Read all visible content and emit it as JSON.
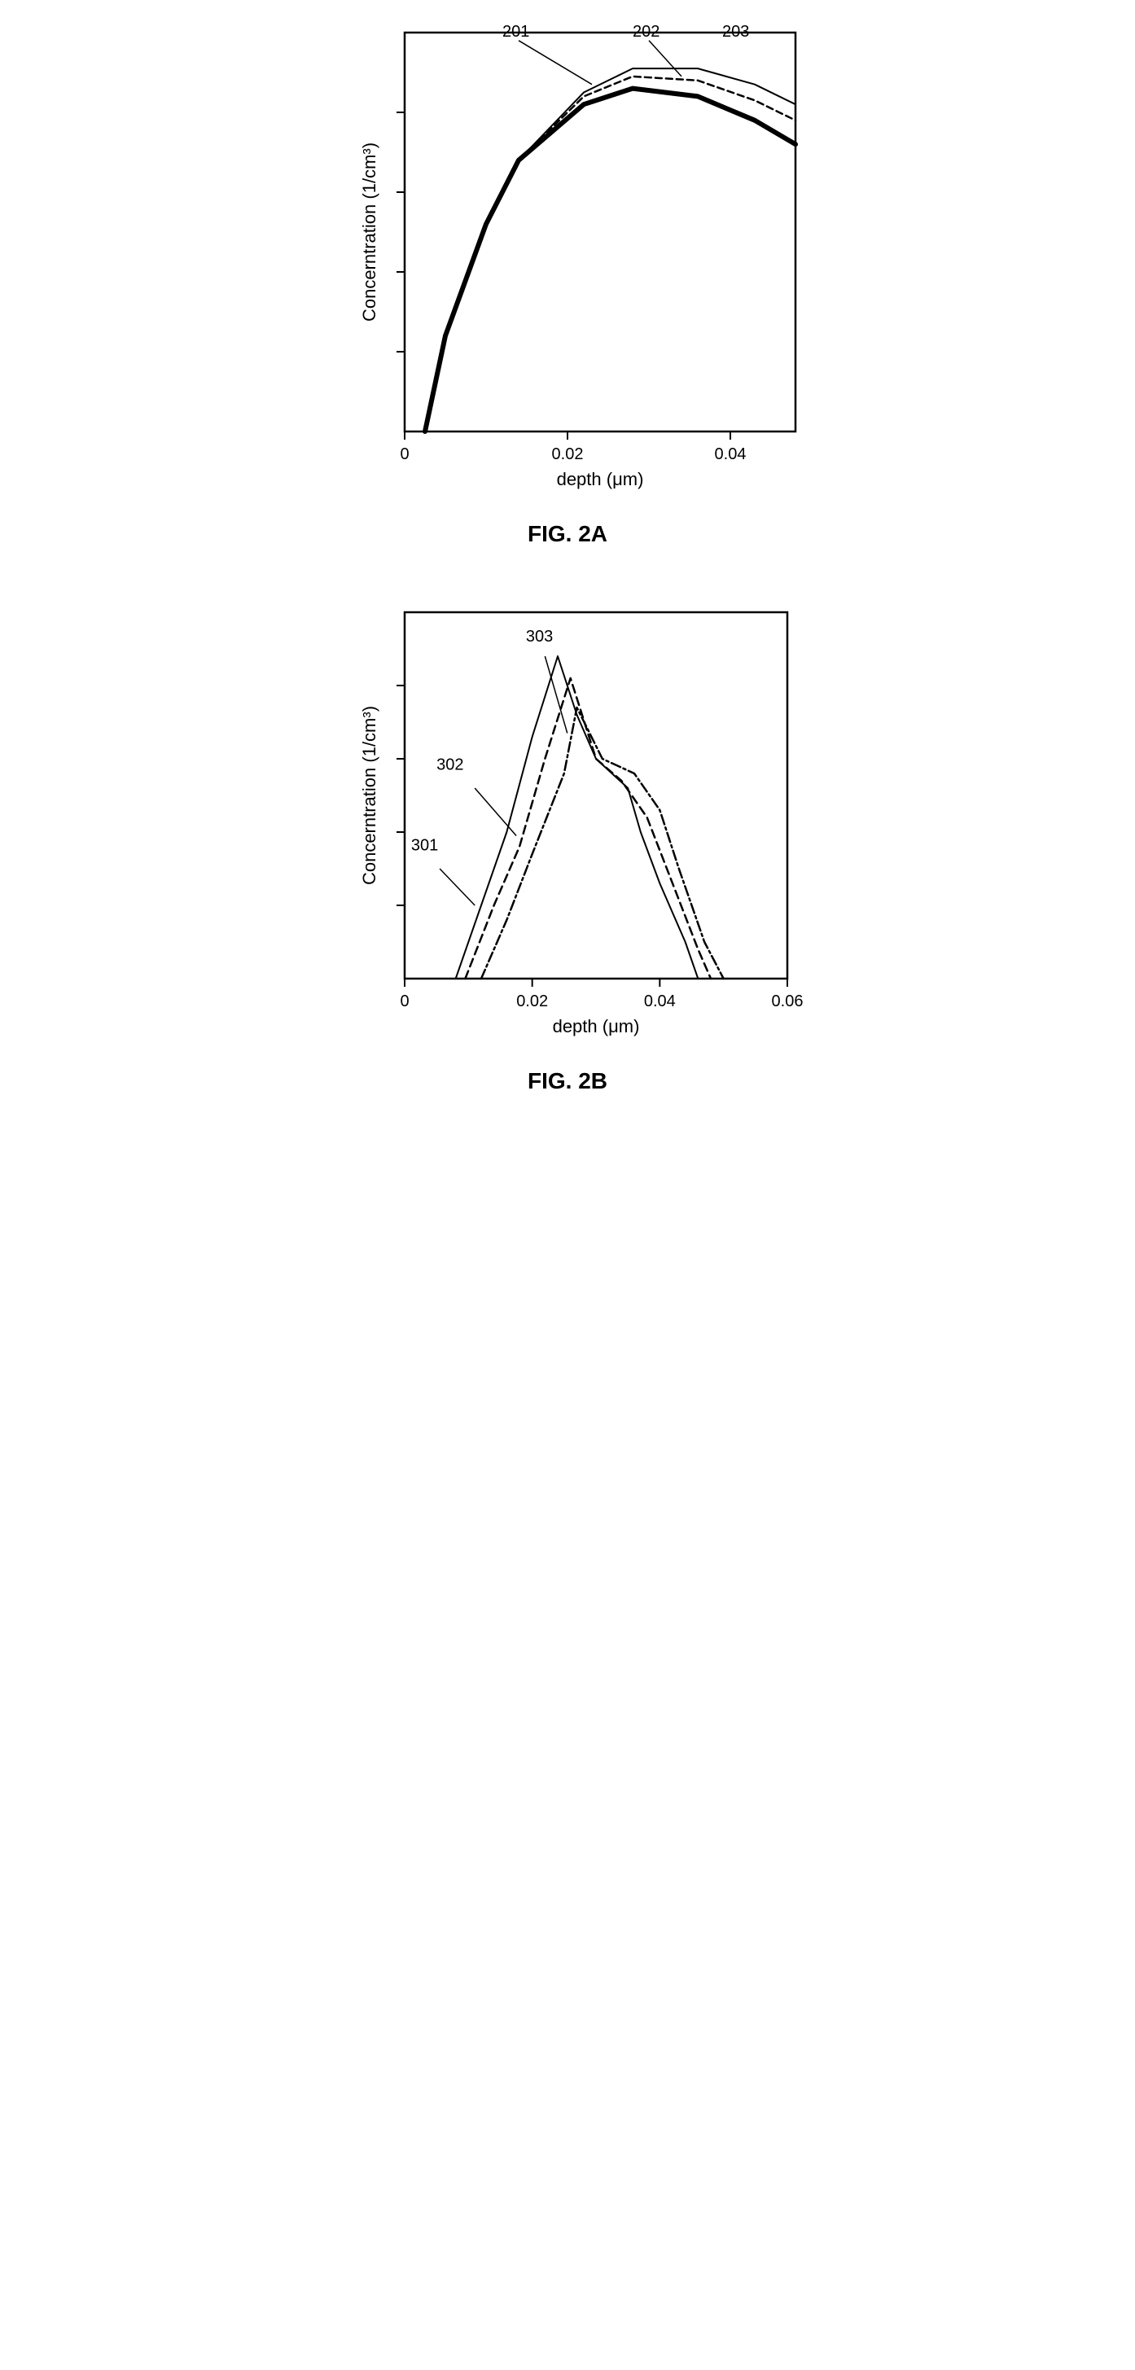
{
  "fig2a": {
    "type": "line",
    "caption": "FIG. 2A",
    "xlabel": "depth (μm)",
    "ylabel": "Concerntration (1/cm³)",
    "xlim": [
      0,
      0.048
    ],
    "ylim": [
      0,
      5
    ],
    "xticks": [
      {
        "pos": 0,
        "label": "0"
      },
      {
        "pos": 0.02,
        "label": "0.02"
      },
      {
        "pos": 0.04,
        "label": "0.04"
      }
    ],
    "yticks": [
      1,
      2,
      3,
      4
    ],
    "label_fontsize": 22,
    "tick_fontsize": 20,
    "series": [
      {
        "id": "201",
        "label": "201",
        "stroke": "#000000",
        "stroke_width": 6,
        "dash": "none",
        "points": [
          [
            0.0025,
            0
          ],
          [
            0.005,
            1.2
          ],
          [
            0.01,
            2.6
          ],
          [
            0.014,
            3.4
          ],
          [
            0.022,
            4.1
          ],
          [
            0.028,
            4.3
          ],
          [
            0.036,
            4.2
          ],
          [
            0.043,
            3.9
          ],
          [
            0.048,
            3.6
          ]
        ],
        "callout": {
          "at": [
            0.023,
            4.35
          ],
          "to": [
            0.014,
            4.9
          ],
          "text_at": [
            0.012,
            4.95
          ]
        }
      },
      {
        "id": "202",
        "label": "202",
        "stroke": "#000000",
        "stroke_width": 2.5,
        "dash": "8,5",
        "points": [
          [
            0.0025,
            0
          ],
          [
            0.005,
            1.2
          ],
          [
            0.01,
            2.6
          ],
          [
            0.014,
            3.4
          ],
          [
            0.022,
            4.2
          ],
          [
            0.028,
            4.45
          ],
          [
            0.036,
            4.4
          ],
          [
            0.043,
            4.15
          ],
          [
            0.048,
            3.9
          ]
        ],
        "callout": {
          "at": [
            0.034,
            4.45
          ],
          "to": [
            0.03,
            4.9
          ],
          "text_at": [
            0.028,
            4.95
          ]
        }
      },
      {
        "id": "203",
        "label": "203",
        "stroke": "#000000",
        "stroke_width": 2,
        "dash": "none",
        "points": [
          [
            0.0025,
            0
          ],
          [
            0.005,
            1.2
          ],
          [
            0.01,
            2.6
          ],
          [
            0.014,
            3.4
          ],
          [
            0.022,
            4.25
          ],
          [
            0.028,
            4.55
          ],
          [
            0.036,
            4.55
          ],
          [
            0.043,
            4.35
          ],
          [
            0.048,
            4.1
          ]
        ],
        "callout": {
          "text_at": [
            0.039,
            4.95
          ]
        }
      }
    ],
    "background_color": "#ffffff"
  },
  "fig2b": {
    "type": "line",
    "caption": "FIG. 2B",
    "xlabel": "depth (μm)",
    "ylabel": "Concerntration (1/cm³)",
    "xlim": [
      0,
      0.06
    ],
    "ylim": [
      0,
      5
    ],
    "xticks": [
      {
        "pos": 0,
        "label": "0"
      },
      {
        "pos": 0.02,
        "label": "0.02"
      },
      {
        "pos": 0.04,
        "label": "0.04"
      },
      {
        "pos": 0.06,
        "label": "0.06"
      }
    ],
    "yticks": [
      1,
      2,
      3,
      4
    ],
    "label_fontsize": 22,
    "tick_fontsize": 20,
    "series": [
      {
        "id": "301",
        "label": "301",
        "stroke": "#000000",
        "stroke_width": 2,
        "dash": "none",
        "points": [
          [
            0.008,
            0
          ],
          [
            0.012,
            1.0
          ],
          [
            0.016,
            2.0
          ],
          [
            0.02,
            3.3
          ],
          [
            0.024,
            4.4
          ],
          [
            0.027,
            3.6
          ],
          [
            0.03,
            3.0
          ],
          [
            0.035,
            2.6
          ],
          [
            0.037,
            2.0
          ],
          [
            0.04,
            1.3
          ],
          [
            0.044,
            0.5
          ],
          [
            0.046,
            0
          ]
        ],
        "callout": {
          "at": [
            0.011,
            1.0
          ],
          "to": [
            0.0055,
            1.5
          ],
          "text_at": [
            0.001,
            1.75
          ]
        }
      },
      {
        "id": "302",
        "label": "302",
        "stroke": "#000000",
        "stroke_width": 2.5,
        "dash": "10,6",
        "points": [
          [
            0.0095,
            0
          ],
          [
            0.014,
            1.0
          ],
          [
            0.018,
            1.8
          ],
          [
            0.022,
            3.0
          ],
          [
            0.026,
            4.1
          ],
          [
            0.03,
            3.0
          ],
          [
            0.034,
            2.7
          ],
          [
            0.038,
            2.2
          ],
          [
            0.042,
            1.3
          ],
          [
            0.046,
            0.4
          ],
          [
            0.048,
            0
          ]
        ],
        "callout": {
          "at": [
            0.0175,
            1.95
          ],
          "to": [
            0.011,
            2.6
          ],
          "text_at": [
            0.005,
            2.85
          ]
        }
      },
      {
        "id": "303",
        "label": "303",
        "stroke": "#000000",
        "stroke_width": 2.5,
        "dash": "12,4,3,4",
        "points": [
          [
            0.012,
            0
          ],
          [
            0.016,
            0.8
          ],
          [
            0.02,
            1.7
          ],
          [
            0.025,
            2.8
          ],
          [
            0.027,
            3.7
          ],
          [
            0.031,
            3.0
          ],
          [
            0.036,
            2.8
          ],
          [
            0.04,
            2.3
          ],
          [
            0.043,
            1.5
          ],
          [
            0.047,
            0.5
          ],
          [
            0.05,
            0
          ]
        ],
        "callout": {
          "at": [
            0.0255,
            3.35
          ],
          "to": [
            0.022,
            4.4
          ],
          "text_at": [
            0.019,
            4.6
          ]
        }
      }
    ],
    "background_color": "#ffffff"
  }
}
